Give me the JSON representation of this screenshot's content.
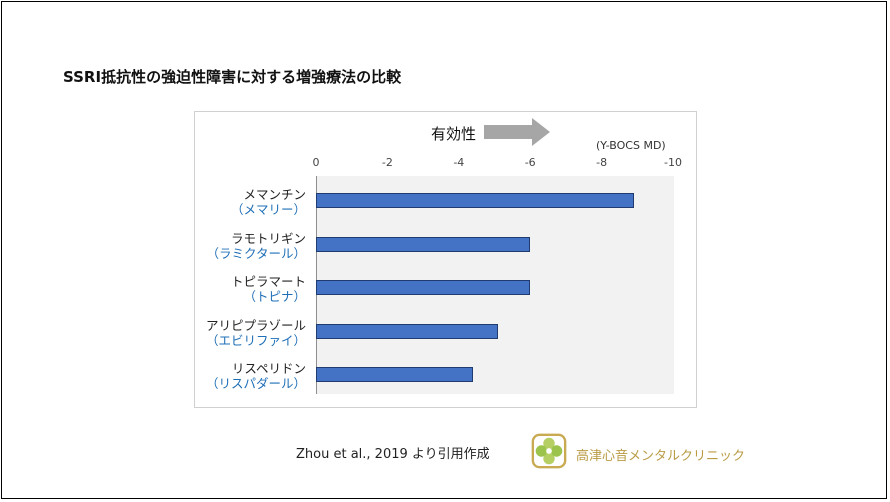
{
  "title": "SSRI抵抗性の強迫性障害に対する増強療法の比較",
  "effect_label": "有効性",
  "unit_label": "(Y-BOCS MD)",
  "citation": "Zhou et al., 2019 より引用作成",
  "clinic_name": "高津心音メンタルクリニック",
  "colors": {
    "bar": "#4472c4",
    "brand_text": "#1f6fb7",
    "arrow": "#a6a6a6",
    "clinic": "#b99b45"
  },
  "chart_data": {
    "type": "bar",
    "orientation": "horizontal",
    "x_ticks": [
      "0",
      "-2",
      "-4",
      "-6",
      "-8",
      "-10"
    ],
    "xlim": [
      0,
      -10
    ],
    "categories": [
      {
        "name": "メマンチン",
        "brand": "（メマリー）"
      },
      {
        "name": "ラモトリギン",
        "brand": "（ラミクタール）"
      },
      {
        "name": "トピラマート",
        "brand": "（トピナ）"
      },
      {
        "name": "アリピプラゾール",
        "brand": "（エビリファイ）"
      },
      {
        "name": "リスペリドン",
        "brand": "（リスパダール）"
      }
    ],
    "values": [
      -8.9,
      -6.0,
      -6.0,
      -5.1,
      -4.4
    ],
    "grid": false,
    "legend": "none"
  }
}
